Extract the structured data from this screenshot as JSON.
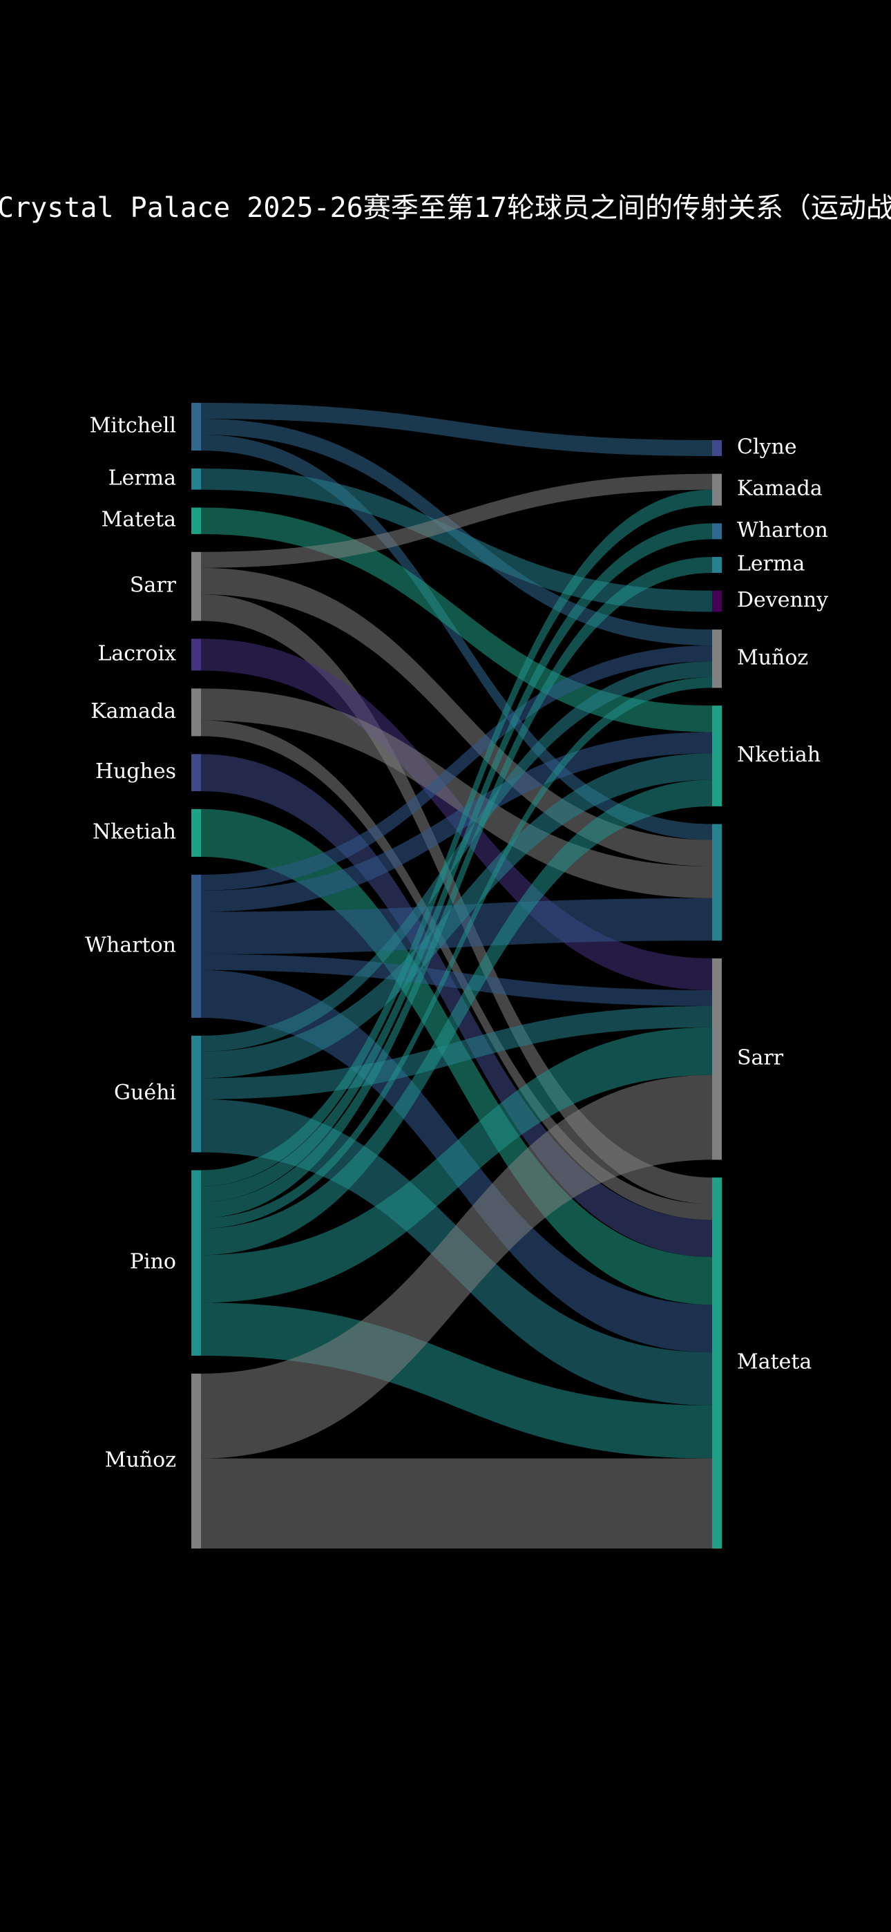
{
  "chart_data": {
    "type": "sankey",
    "title": "Crystal Palace 2025-26赛季至第17轮球员之间的传射关系（运动战",
    "nodes": [
      {
        "label": "Mitchell",
        "color": "#31688e"
      },
      {
        "label": "Lerma",
        "color": "#26828e"
      },
      {
        "label": "Mateta",
        "color": "#1fa187"
      },
      {
        "label": "Sarr",
        "color": "#808080"
      },
      {
        "label": "Lacroix",
        "color": "#46327e"
      },
      {
        "label": "Kamada",
        "color": "#808080"
      },
      {
        "label": "Hughes",
        "color": "#3e4a89"
      },
      {
        "label": "Nketiah",
        "color": "#1fa187"
      },
      {
        "label": "Wharton",
        "color": "#31598c"
      },
      {
        "label": "Guéhi",
        "color": "#26828e"
      },
      {
        "label": "Pino",
        "color": "#21918c"
      },
      {
        "label": "Muñoz",
        "color": "#808080"
      },
      {
        "label": "Clyne",
        "color": "#3e4a89"
      },
      {
        "label": "Kamada",
        "color": "#808080"
      },
      {
        "label": "Wharton",
        "color": "#31688e"
      },
      {
        "label": "Lerma",
        "color": "#26828e"
      },
      {
        "label": "Devenny",
        "color": "#440154"
      },
      {
        "label": "Muñoz",
        "color": "#808080"
      },
      {
        "label": "Nketiah",
        "color": "#1fa187"
      },
      {
        "label": null,
        "color": "#26828e"
      },
      {
        "label": "Sarr",
        "color": "#808080"
      },
      {
        "label": "Mateta",
        "color": "#1fa187"
      }
    ],
    "links": [
      {
        "source": 0,
        "target": 12,
        "value": 3
      },
      {
        "source": 0,
        "target": 17,
        "value": 3
      },
      {
        "source": 0,
        "target": 19,
        "value": 3
      },
      {
        "source": 1,
        "target": 16,
        "value": 4
      },
      {
        "source": 2,
        "target": 18,
        "value": 5
      },
      {
        "source": 3,
        "target": 13,
        "value": 3
      },
      {
        "source": 3,
        "target": 19,
        "value": 5
      },
      {
        "source": 3,
        "target": 21,
        "value": 5
      },
      {
        "source": 4,
        "target": 20,
        "value": 6
      },
      {
        "source": 5,
        "target": 19,
        "value": 6
      },
      {
        "source": 5,
        "target": 21,
        "value": 3
      },
      {
        "source": 6,
        "target": 21,
        "value": 7
      },
      {
        "source": 7,
        "target": 21,
        "value": 9
      },
      {
        "source": 8,
        "target": 17,
        "value": 3
      },
      {
        "source": 8,
        "target": 18,
        "value": 4
      },
      {
        "source": 8,
        "target": 19,
        "value": 8
      },
      {
        "source": 8,
        "target": 20,
        "value": 3
      },
      {
        "source": 8,
        "target": 21,
        "value": 9
      },
      {
        "source": 9,
        "target": 17,
        "value": 3
      },
      {
        "source": 9,
        "target": 18,
        "value": 5
      },
      {
        "source": 9,
        "target": 20,
        "value": 4
      },
      {
        "source": 9,
        "target": 21,
        "value": 10
      },
      {
        "source": 10,
        "target": 13,
        "value": 3
      },
      {
        "source": 10,
        "target": 14,
        "value": 3
      },
      {
        "source": 10,
        "target": 15,
        "value": 3
      },
      {
        "source": 10,
        "target": 17,
        "value": 2
      },
      {
        "source": 10,
        "target": 18,
        "value": 5
      },
      {
        "source": 10,
        "target": 20,
        "value": 9
      },
      {
        "source": 10,
        "target": 21,
        "value": 10
      },
      {
        "source": 11,
        "target": 20,
        "value": 16
      },
      {
        "source": 11,
        "target": 21,
        "value": 17
      }
    ]
  }
}
